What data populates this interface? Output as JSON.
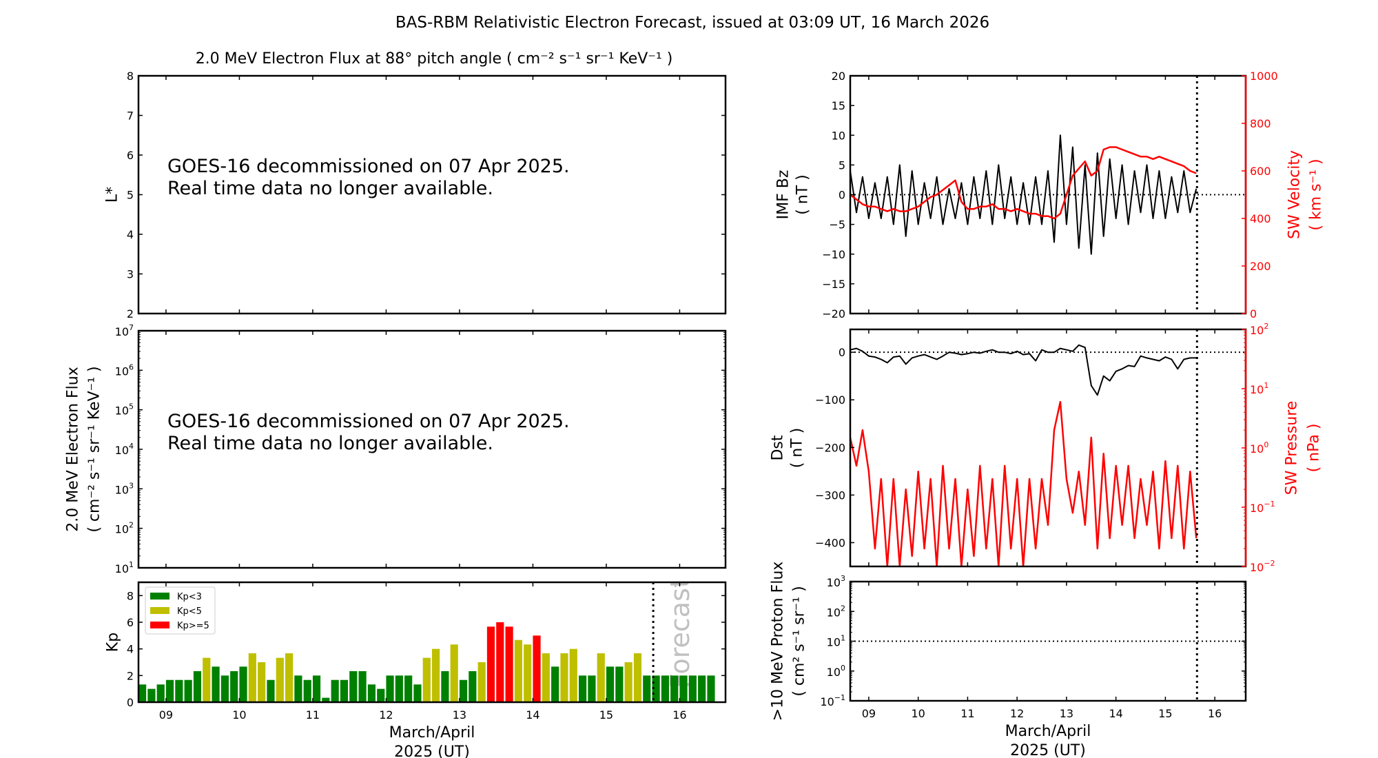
{
  "header": {
    "title": "BAS-RBM Relativistic Electron Forecast, issued at 03:09 UT, 16 March 2026"
  },
  "colors": {
    "kp_low": "#008000",
    "kp_mid": "#bfbf00",
    "kp_high": "#ff0000",
    "solar_wind": "#ff0000",
    "data": "#000000",
    "forecast_text": "#c0c0c0"
  },
  "chart_data": [
    {
      "type": "heatmap",
      "title": "2.0 MeV Electron Flux at 88° pitch angle ( cm⁻² s⁻¹ sr⁻¹ KeV⁻¹ )",
      "ylabel": [
        "L*"
      ],
      "ylim": [
        2,
        8
      ],
      "yticks": [
        "2",
        "3",
        "4",
        "5",
        "6",
        "7",
        "8"
      ],
      "xlim": [
        8.625,
        16.625
      ],
      "xticks": [
        9,
        10,
        11,
        12,
        13,
        14,
        15,
        16
      ],
      "annotation": [
        "GOES-16 decommissioned on 07 Apr 2025.",
        "Real time data no longer available."
      ]
    },
    {
      "type": "heatmap",
      "ylabel": [
        "2.0 MeV Electron Flux",
        "( cm⁻² s⁻¹ sr⁻¹ KeV⁻¹ )"
      ],
      "yscale": "log",
      "ylim": [
        10,
        10000000
      ],
      "ytick_base": "10",
      "ytick_exponents": [
        "1",
        "2",
        "3",
        "4",
        "5",
        "6",
        "7"
      ],
      "xlim": [
        8.625,
        16.625
      ],
      "xticks": [
        9,
        10,
        11,
        12,
        13,
        14,
        15,
        16
      ],
      "annotation": [
        "GOES-16 decommissioned on 07 Apr 2025.",
        "Real time data no longer available."
      ]
    },
    {
      "type": "bar",
      "ylabel": [
        "Kp"
      ],
      "ylim": [
        0,
        9
      ],
      "yticks": [
        "0",
        "2",
        "4",
        "6",
        "8"
      ],
      "xlim": [
        8.625,
        16.625
      ],
      "xticks": [
        9,
        10,
        11,
        12,
        13,
        14,
        15,
        16
      ],
      "xtick_labels": [
        "09",
        "10",
        "11",
        "12",
        "13",
        "14",
        "15",
        "16"
      ],
      "xlabel": [
        "March/April",
        "2025 (UT)"
      ],
      "x_start": 8.625,
      "x_step": 0.125,
      "values": [
        1.33,
        1.0,
        1.33,
        1.67,
        1.67,
        1.67,
        2.33,
        3.33,
        2.67,
        2.0,
        2.33,
        2.67,
        3.67,
        3.0,
        1.67,
        3.33,
        3.67,
        2.0,
        1.67,
        2.0,
        0.33,
        1.67,
        1.67,
        2.33,
        2.33,
        1.33,
        1.0,
        2.0,
        2.0,
        2.0,
        1.33,
        3.33,
        4.0,
        2.33,
        4.33,
        1.67,
        2.33,
        3.0,
        5.67,
        6.0,
        5.67,
        4.67,
        4.33,
        5.0,
        3.67,
        2.67,
        3.67,
        4.0,
        2.0,
        2.0,
        3.67,
        2.67,
        2.67,
        3.0,
        3.67,
        2.0,
        2.0,
        2.0,
        2.0,
        2.0,
        2.0,
        2.0,
        2.0
      ],
      "forecast_start": 15.625,
      "now_line": 15.64,
      "legend_position": "upper-left",
      "legend": [
        {
          "label": "Kp<3",
          "color": "#008000"
        },
        {
          "label": "Kp<5",
          "color": "#bfbf00"
        },
        {
          "label": "Kp>=5",
          "color": "#ff0000"
        }
      ],
      "forecast_label": "Forecast"
    },
    {
      "type": "line",
      "ylabel": [
        "IMF Bz",
        "( nT )"
      ],
      "ylim": [
        -20,
        20
      ],
      "yticks": [
        "−20",
        "−15",
        "−10",
        "−5",
        "0",
        "5",
        "10",
        "15",
        "20"
      ],
      "y2label": [
        "SW Velocity",
        "( km s⁻¹ )"
      ],
      "y2lim": [
        0,
        1000
      ],
      "y2ticks": [
        "0",
        "200",
        "400",
        "600",
        "800",
        "1000"
      ],
      "xlim": [
        8.625,
        16.625
      ],
      "xticks": [
        9,
        10,
        11,
        12,
        13,
        14,
        15,
        16
      ],
      "now_line": 15.64,
      "reference_line": 0,
      "x_start": 8.625,
      "x_step": 0.125,
      "series": [
        {
          "name": "IMF Bz",
          "axis": "left",
          "color": "#000000",
          "values": [
            4,
            -3,
            3,
            -4,
            2,
            -4,
            3,
            -5,
            5,
            -7,
            4,
            -5,
            2,
            -4,
            3,
            -5,
            1,
            -4,
            2,
            -5,
            3,
            -4,
            4,
            -5,
            5,
            -4,
            3,
            -5,
            2,
            -5,
            3,
            -5,
            4,
            -8,
            10,
            -5,
            8,
            -9,
            5,
            -10,
            7,
            -7,
            6,
            -4,
            5,
            -5,
            4,
            -3,
            5,
            -4,
            4,
            -4,
            3,
            -3,
            4,
            -3,
            1
          ]
        },
        {
          "name": "SW Velocity",
          "axis": "right",
          "color": "#ff0000",
          "values": [
            500,
            480,
            460,
            450,
            450,
            440,
            430,
            440,
            430,
            430,
            440,
            450,
            470,
            490,
            500,
            520,
            540,
            560,
            470,
            440,
            440,
            450,
            450,
            460,
            440,
            440,
            430,
            440,
            430,
            420,
            420,
            410,
            410,
            400,
            420,
            500,
            580,
            610,
            640,
            580,
            600,
            690,
            700,
            700,
            690,
            680,
            670,
            660,
            660,
            650,
            660,
            650,
            640,
            630,
            620,
            600,
            590
          ]
        }
      ]
    },
    {
      "type": "line",
      "ylabel": [
        "Dst",
        "( nT )"
      ],
      "ylim": [
        -450,
        48
      ],
      "yticks": [
        "−400",
        "−300",
        "−200",
        "−100",
        "0"
      ],
      "y2label": [
        "SW Pressure",
        "( nPa )"
      ],
      "y2scale": "log",
      "y2lim": [
        0.01,
        100
      ],
      "y2tick_base": "10",
      "y2tick_exponents": [
        "−2",
        "−1",
        "0",
        "1",
        "2"
      ],
      "xlim": [
        8.625,
        16.625
      ],
      "xticks": [
        9,
        10,
        11,
        12,
        13,
        14,
        15,
        16
      ],
      "now_line": 15.64,
      "reference_line": 0,
      "x_start": 8.625,
      "x_step": 0.125,
      "series": [
        {
          "name": "Dst",
          "axis": "left",
          "color": "#000000",
          "values": [
            5,
            8,
            2,
            -8,
            -10,
            -15,
            -22,
            -10,
            -8,
            -25,
            -12,
            -8,
            -5,
            -10,
            -15,
            -8,
            0,
            -2,
            -5,
            -3,
            0,
            -2,
            2,
            5,
            0,
            0,
            -3,
            2,
            -5,
            -3,
            -18,
            5,
            0,
            0,
            8,
            5,
            2,
            15,
            10,
            -70,
            -90,
            -50,
            -60,
            -40,
            -35,
            -28,
            -30,
            -8,
            -12,
            -15,
            -18,
            -10,
            -15,
            -35,
            -15,
            -12,
            -12
          ]
        },
        {
          "name": "SW Pressure",
          "axis": "right",
          "color": "#ff0000",
          "values": [
            1.5,
            0.5,
            2,
            0.4,
            0.02,
            0.3,
            0.01,
            0.3,
            0.01,
            0.2,
            0.015,
            0.4,
            0.02,
            0.3,
            0.01,
            0.5,
            0.02,
            0.3,
            0.01,
            0.2,
            0.015,
            0.5,
            0.02,
            0.3,
            0.01,
            0.5,
            0.02,
            0.3,
            0.01,
            0.3,
            0.02,
            0.3,
            0.05,
            2,
            6,
            0.3,
            0.08,
            0.4,
            0.05,
            1.5,
            0.02,
            0.8,
            0.03,
            0.5,
            0.05,
            0.5,
            0.03,
            0.3,
            0.05,
            0.4,
            0.02,
            0.6,
            0.03,
            0.5,
            0.02,
            0.4,
            0.03
          ]
        }
      ]
    },
    {
      "type": "line",
      "ylabel": [
        ">10 MeV Proton Flux",
        "( cm² s⁻¹ sr⁻¹ )"
      ],
      "yscale": "log",
      "ylim": [
        0.1,
        1000
      ],
      "ytick_base": "10",
      "ytick_exponents": [
        "−1",
        "0",
        "1",
        "2",
        "3"
      ],
      "xlim": [
        8.625,
        16.625
      ],
      "xticks": [
        9,
        10,
        11,
        12,
        13,
        14,
        15,
        16
      ],
      "xtick_labels": [
        "09",
        "10",
        "11",
        "12",
        "13",
        "14",
        "15",
        "16"
      ],
      "xlabel": [
        "March/April",
        "2025 (UT)"
      ],
      "now_line": 15.64,
      "reference_line": 10,
      "series": []
    }
  ]
}
